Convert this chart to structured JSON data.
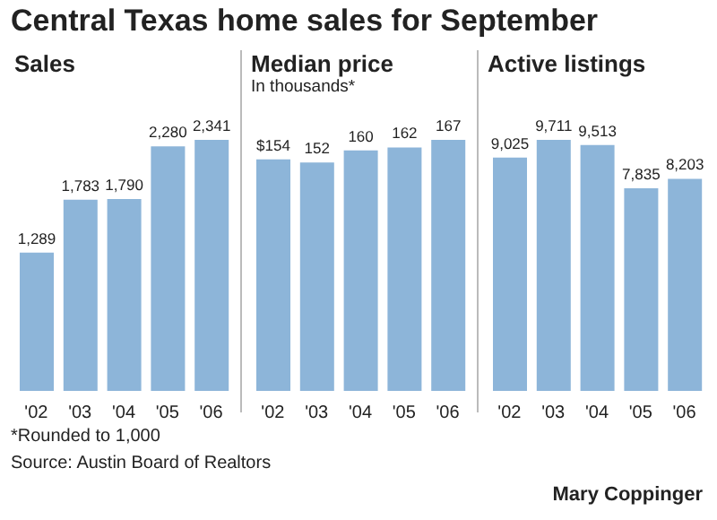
{
  "chart_data": [
    {
      "type": "other",
      "title": "Central Texas home sales for September",
      "annotations": [
        "*Rounded to 1,000",
        "Source: Austin Board of Realtors",
        "Mary Coppinger"
      ]
    },
    {
      "type": "bar",
      "title": "Sales",
      "categories": [
        "'02",
        "'03",
        "'04",
        "'05",
        "'06"
      ],
      "values": [
        1289,
        1783,
        1790,
        2280,
        2341
      ],
      "value_labels": [
        "1,289",
        "1,783",
        "1,790",
        "2,280",
        "2,341"
      ],
      "color": "#8db5d9"
    },
    {
      "type": "bar",
      "title": "Median price",
      "subtitle": "In thousands*",
      "categories": [
        "'02",
        "'03",
        "'04",
        "'05",
        "'06"
      ],
      "values": [
        154,
        152,
        160,
        162,
        167
      ],
      "value_labels": [
        "$154",
        "152",
        "160",
        "162",
        "167"
      ],
      "color": "#8db5d9"
    },
    {
      "type": "bar",
      "title": "Active listings",
      "categories": [
        "'02",
        "'03",
        "'04",
        "'05",
        "'06"
      ],
      "values": [
        9025,
        9711,
        9513,
        7835,
        8203
      ],
      "value_labels": [
        "9,025",
        "9,711",
        "9,513",
        "7,835",
        "8,203"
      ],
      "color": "#8db5d9"
    }
  ]
}
